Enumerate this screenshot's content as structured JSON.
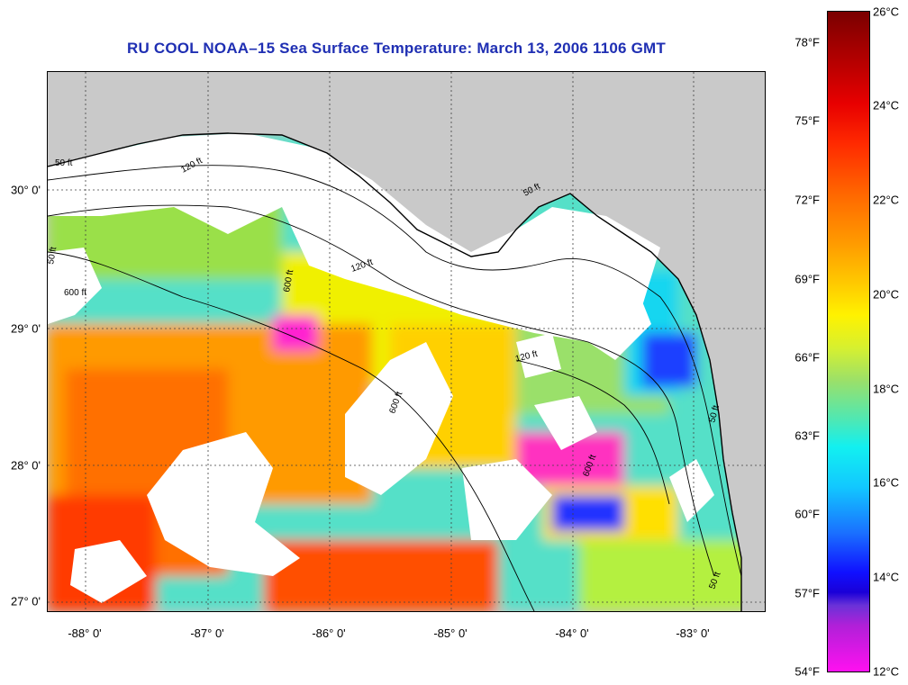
{
  "title": "RU COOL  NOAA–15  Sea Surface Temperature:  March 13, 2006 1106 GMT",
  "x_axis": [
    "-88° 0'",
    "-87° 0'",
    "-86° 0'",
    "-85° 0'",
    "-84° 0'",
    "-83° 0'"
  ],
  "y_axis": [
    "30° 0'",
    "29° 0'",
    "28° 0'",
    "27° 0'"
  ],
  "colorbar": {
    "fahrenheit": [
      "78°F",
      "75°F",
      "72°F",
      "69°F",
      "66°F",
      "63°F",
      "60°F",
      "57°F",
      "54°F"
    ],
    "celsius": [
      "26°C",
      "24°C",
      "22°C",
      "20°C",
      "18°C",
      "16°C",
      "14°C",
      "12°C"
    ]
  },
  "contour_labels": [
    "50 ft",
    "120 ft",
    "600 ft",
    "600 ft",
    "600 ft",
    "120 ft",
    "50 ft",
    "50 ft",
    "600 ft",
    "120 ft",
    "50 ft",
    "50 ft"
  ],
  "colors": {
    "land": "#c9c9c9",
    "cloud": "#ffffff",
    "title": "#1f2fb3"
  }
}
